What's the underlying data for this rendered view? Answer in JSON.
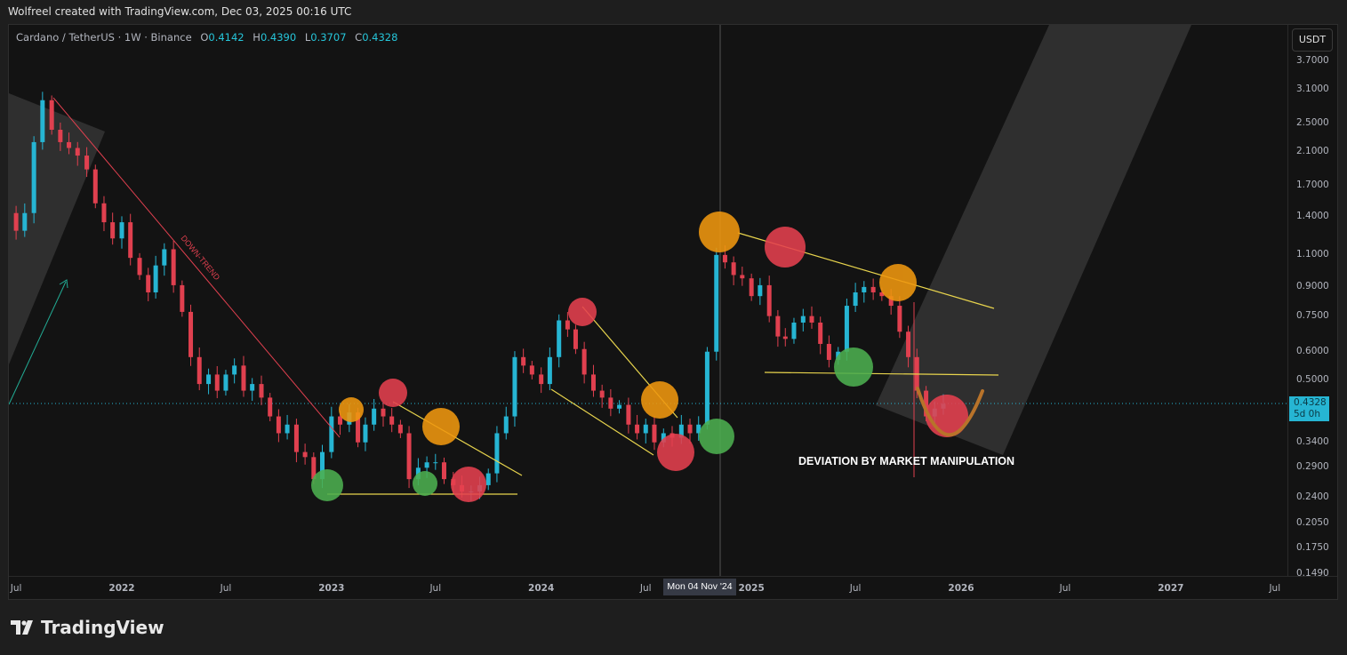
{
  "credit": "Wolfreel created with TradingView.com, Dec 03, 2025 00:16 UTC",
  "legend": {
    "symbol": "Cardano / TetherUS · 1W · Binance",
    "o_label": "O",
    "o": "0.4142",
    "h_label": "H",
    "h": "0.4390",
    "l_label": "L",
    "l": "0.3707",
    "c_label": "C",
    "c": "0.4328"
  },
  "currency_button": "USDT",
  "last_price": {
    "value": "0.4328",
    "countdown": "5d 0h"
  },
  "crosshair_label": "Mon 04 Nov '24",
  "brand": "TradingView",
  "colors": {
    "up": "#26b5d3",
    "down": "#e0404f",
    "trendline": "#e8d44d",
    "downtrend": "#e0404f",
    "background": "#131313"
  },
  "annotations": {
    "downtrend": "DOWN-TREND",
    "deviation": "DEVIATION BY MARKET MANIPULATION"
  },
  "chart_data": {
    "type": "candlestick",
    "title": "Cardano / TetherUS · 1W · Binance",
    "y_scale": "log",
    "ylim": [
      0.149,
      3.7
    ],
    "xlim": [
      "2021-07-01",
      "2027-07-01"
    ],
    "grid": false,
    "y_ticks": [
      "3.7000",
      "3.1000",
      "2.5000",
      "2.1000",
      "1.7000",
      "1.4000",
      "1.1000",
      "0.9000",
      "0.7500",
      "0.6000",
      "0.5000",
      "0.3400",
      "0.2900",
      "0.2400",
      "0.2050",
      "0.1750",
      "0.1490"
    ],
    "x_ticks": [
      "Jul",
      "2022",
      "Jul",
      "2023",
      "Jul",
      "2024",
      "Jul",
      "2025",
      "Jul",
      "2026",
      "Jul",
      "2027",
      "Jul"
    ],
    "closes": [
      [
        "2021-06-16",
        1.43
      ],
      [
        "2021-07-01",
        1.28
      ],
      [
        "2021-07-16",
        1.43
      ],
      [
        "2021-08-01",
        2.23
      ],
      [
        "2021-08-16",
        2.9
      ],
      [
        "2021-09-01",
        2.41
      ],
      [
        "2021-09-16",
        2.23
      ],
      [
        "2021-10-01",
        2.15
      ],
      [
        "2021-10-16",
        2.05
      ],
      [
        "2021-11-01",
        1.88
      ],
      [
        "2021-11-16",
        1.52
      ],
      [
        "2021-12-01",
        1.35
      ],
      [
        "2021-12-16",
        1.22
      ],
      [
        "2022-01-01",
        1.35
      ],
      [
        "2022-01-16",
        1.08
      ],
      [
        "2022-02-01",
        0.97
      ],
      [
        "2022-02-16",
        0.87
      ],
      [
        "2022-03-01",
        1.03
      ],
      [
        "2022-03-16",
        1.14
      ],
      [
        "2022-04-01",
        0.91
      ],
      [
        "2022-04-16",
        0.77
      ],
      [
        "2022-05-01",
        0.58
      ],
      [
        "2022-05-16",
        0.49
      ],
      [
        "2022-06-01",
        0.52
      ],
      [
        "2022-06-16",
        0.47
      ],
      [
        "2022-07-01",
        0.52
      ],
      [
        "2022-07-16",
        0.55
      ],
      [
        "2022-08-01",
        0.47
      ],
      [
        "2022-08-16",
        0.49
      ],
      [
        "2022-09-01",
        0.45
      ],
      [
        "2022-09-16",
        0.4
      ],
      [
        "2022-10-01",
        0.36
      ],
      [
        "2022-10-16",
        0.38
      ],
      [
        "2022-11-01",
        0.32
      ],
      [
        "2022-11-16",
        0.31
      ],
      [
        "2022-12-01",
        0.27
      ],
      [
        "2022-12-16",
        0.32
      ],
      [
        "2023-01-01",
        0.4
      ],
      [
        "2023-01-16",
        0.38
      ],
      [
        "2023-02-01",
        0.41
      ],
      [
        "2023-02-16",
        0.34
      ],
      [
        "2023-03-01",
        0.38
      ],
      [
        "2023-03-16",
        0.42
      ],
      [
        "2023-04-01",
        0.4
      ],
      [
        "2023-04-16",
        0.38
      ],
      [
        "2023-05-01",
        0.36
      ],
      [
        "2023-05-16",
        0.27
      ],
      [
        "2023-06-01",
        0.29
      ],
      [
        "2023-06-16",
        0.3
      ],
      [
        "2023-07-01",
        0.3
      ],
      [
        "2023-07-16",
        0.27
      ],
      [
        "2023-08-01",
        0.26
      ],
      [
        "2023-08-16",
        0.25
      ],
      [
        "2023-09-01",
        0.25
      ],
      [
        "2023-09-16",
        0.26
      ],
      [
        "2023-10-01",
        0.28
      ],
      [
        "2023-10-16",
        0.36
      ],
      [
        "2023-11-01",
        0.4
      ],
      [
        "2023-11-16",
        0.58
      ],
      [
        "2023-12-01",
        0.55
      ],
      [
        "2023-12-16",
        0.52
      ],
      [
        "2024-01-01",
        0.49
      ],
      [
        "2024-01-16",
        0.58
      ],
      [
        "2024-02-01",
        0.73
      ],
      [
        "2024-02-16",
        0.69
      ],
      [
        "2024-03-01",
        0.61
      ],
      [
        "2024-03-16",
        0.52
      ],
      [
        "2024-04-01",
        0.47
      ],
      [
        "2024-04-16",
        0.45
      ],
      [
        "2024-05-01",
        0.42
      ],
      [
        "2024-05-16",
        0.43
      ],
      [
        "2024-06-01",
        0.38
      ],
      [
        "2024-06-16",
        0.36
      ],
      [
        "2024-07-01",
        0.38
      ],
      [
        "2024-07-16",
        0.34
      ],
      [
        "2024-08-01",
        0.36
      ],
      [
        "2024-08-16",
        0.35
      ],
      [
        "2024-09-01",
        0.38
      ],
      [
        "2024-09-16",
        0.36
      ],
      [
        "2024-10-01",
        0.38
      ],
      [
        "2024-10-16",
        0.6
      ],
      [
        "2024-11-01",
        1.1
      ],
      [
        "2024-11-16",
        1.05
      ],
      [
        "2024-12-01",
        0.97
      ],
      [
        "2024-12-16",
        0.95
      ],
      [
        "2025-01-01",
        0.85
      ],
      [
        "2025-01-16",
        0.91
      ],
      [
        "2025-02-01",
        0.75
      ],
      [
        "2025-02-16",
        0.66
      ],
      [
        "2025-03-01",
        0.65
      ],
      [
        "2025-03-16",
        0.72
      ],
      [
        "2025-04-01",
        0.75
      ],
      [
        "2025-04-16",
        0.72
      ],
      [
        "2025-05-01",
        0.63
      ],
      [
        "2025-05-16",
        0.57
      ],
      [
        "2025-06-01",
        0.6
      ],
      [
        "2025-06-16",
        0.8
      ],
      [
        "2025-07-01",
        0.87
      ],
      [
        "2025-07-16",
        0.9
      ],
      [
        "2025-08-01",
        0.87
      ],
      [
        "2025-08-16",
        0.85
      ],
      [
        "2025-09-01",
        0.8
      ],
      [
        "2025-09-16",
        0.68
      ],
      [
        "2025-10-01",
        0.58
      ],
      [
        "2025-10-16",
        0.47
      ],
      [
        "2025-11-01",
        0.4
      ],
      [
        "2025-11-16",
        0.42
      ],
      [
        "2025-12-01",
        0.4328
      ]
    ]
  }
}
